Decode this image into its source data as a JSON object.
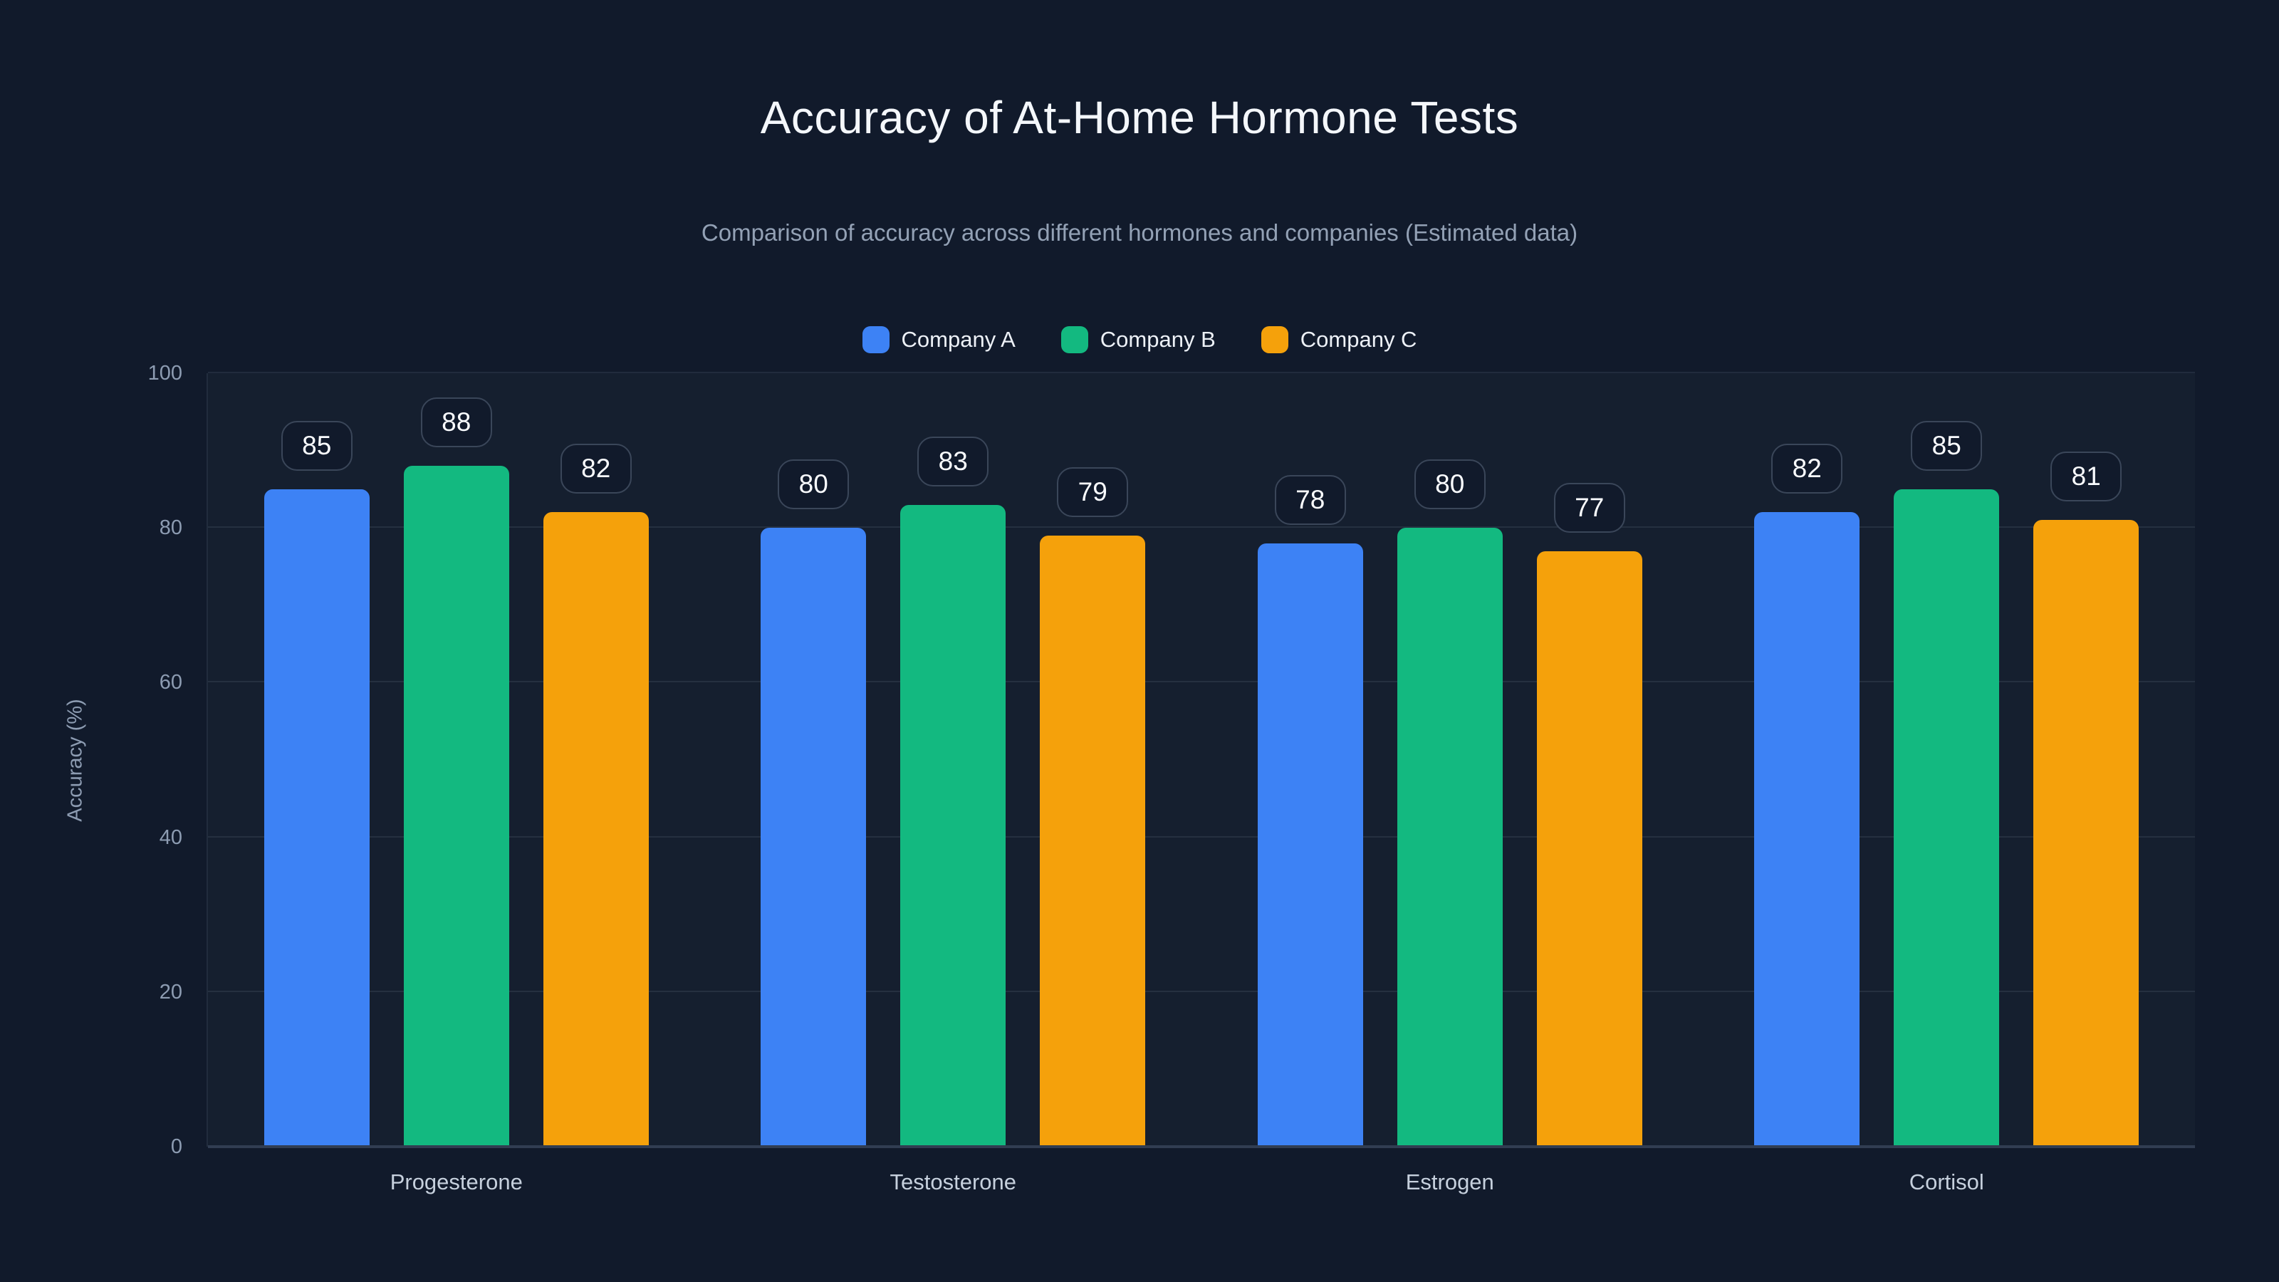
{
  "chart_data": {
    "type": "bar",
    "title": "Accuracy of At-Home Hormone Tests",
    "subtitle": "Comparison of accuracy across different hormones and companies (Estimated data)",
    "categories": [
      "Progesterone",
      "Testosterone",
      "Estrogen",
      "Cortisol"
    ],
    "series": [
      {
        "name": "Company A",
        "color": "#3D82F5",
        "values": [
          85,
          80,
          78,
          82
        ]
      },
      {
        "name": "Company B",
        "color": "#13B980",
        "values": [
          88,
          83,
          80,
          85
        ]
      },
      {
        "name": "Company C",
        "color": "#F5A10B",
        "values": [
          82,
          79,
          77,
          81
        ]
      }
    ],
    "xlabel": "",
    "ylabel": "Accuracy (%)",
    "ylim": [
      0,
      100
    ],
    "yticks": [
      0,
      20,
      40,
      60,
      80,
      100
    ],
    "legend_position": "top",
    "grid": true,
    "value_labels": true
  },
  "colors": {
    "background": "#111A2B",
    "title_text": "#F4F7FB",
    "subtitle_text": "#93A1B5",
    "tick_text": "#8D9CB2",
    "category_text": "#C6D0DD",
    "legend_text": "#EDF1F7",
    "gridline": "rgba(148,163,184,0.13)",
    "axis_line": "#313D52",
    "badge_border": "#3A4659",
    "badge_text": "#FAFCFF"
  }
}
